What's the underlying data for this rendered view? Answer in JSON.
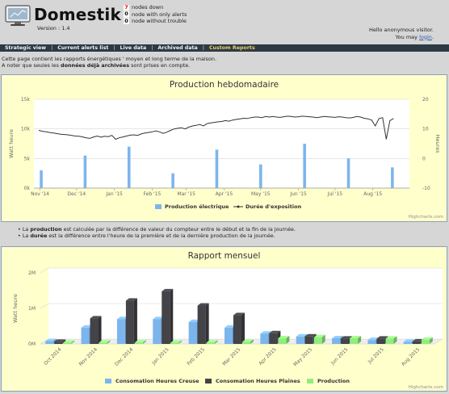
{
  "header": {
    "title": "Domestik",
    "version": "Version : 1.4",
    "node_status": [
      {
        "count": "7",
        "label": "nodes down",
        "color": "#cc0000"
      },
      {
        "count": "0",
        "label": "node with only alerts",
        "color": "#000000"
      },
      {
        "count": "0",
        "label": "node without trouble",
        "color": "#000000"
      }
    ],
    "greeting": "Hello anonymous visitor.",
    "login_prefix": "You may",
    "login_link": "login",
    "login_suffix": "."
  },
  "nav": {
    "items": [
      "Strategic view",
      "Current alerts list",
      "Live data",
      "Archived data",
      "Custom Reports"
    ],
    "active_index": 4,
    "active_color": "#f1d066"
  },
  "intro": {
    "line1": "Cette page contient les rapports énergétiques ' moyen et long terme de la maison.",
    "line2_prefix": "A noter que seules les",
    "line2_bold": "données déjà archivées",
    "line2_suffix": "sont prises en compte."
  },
  "notes": {
    "n1_prefix": "La",
    "n1_bold": "production",
    "n1_suffix": "est calculée par la différence de valeur du compteur entre le début et la fin de la journée.",
    "n2_prefix": "La",
    "n2_bold": "durée",
    "n2_suffix": "est la différence entre l'heure de la première et de la dernière production de la journée."
  },
  "credits": "Highcharts.com",
  "chart_data": [
    {
      "type": "bar",
      "title": "Production hebdomadaire",
      "ylabel": "Watt heure",
      "ylabel_right": "Heures",
      "ylim": [
        0,
        15000
      ],
      "ylim_right": [
        -10,
        20
      ],
      "y_ticks": [
        "0k",
        "5k",
        "10k",
        "15k"
      ],
      "y_ticks_right": [
        "-10",
        "0",
        "10",
        "20"
      ],
      "x_ticks": [
        "Nov '14",
        "Dec '14",
        "Jan '15",
        "Feb '15",
        "Mar '15",
        "Apr '15",
        "May '15",
        "Jun '15",
        "Jul '15",
        "Aug '15"
      ],
      "x_range": [
        "2014-10-27",
        "2015-08-31"
      ],
      "grid": true,
      "legend_position": "bottom",
      "series": [
        {
          "name": "Production électrique",
          "kind": "bar",
          "color": "#7cb5ec",
          "axis": "left",
          "sample_days": 36,
          "values": [
            3000,
            5500,
            7000,
            2500,
            6500,
            4000,
            7500,
            5000,
            3500,
            6000,
            2000,
            4500,
            2500,
            3500,
            1500,
            2500,
            3000,
            5500,
            4500,
            6500,
            3500,
            7000,
            5500,
            8000,
            9500,
            7500,
            10000,
            9000,
            11000,
            10500,
            12000,
            9500,
            11000,
            12500,
            10000,
            6000
          ]
        },
        {
          "name": "Durée d'exposition",
          "kind": "line",
          "color": "#333333",
          "axis": "right",
          "sample_days": 12,
          "values": [
            9.5,
            9.2,
            9.0,
            8.8,
            8.6,
            8.4,
            8.2,
            8.1,
            8.0,
            7.8,
            7.6,
            7.5,
            7.3,
            7.0,
            6.8,
            7.3,
            7.6,
            7.2,
            7.5,
            7.4,
            7.8,
            6.5,
            7.0,
            7.3,
            7.6,
            7.9,
            8.0,
            7.8,
            8.3,
            8.6,
            8.8,
            9.0,
            9.3,
            9.0,
            8.5,
            8.9,
            9.5,
            10.0,
            10.2,
            10.4,
            10.0,
            10.6,
            11.0,
            11.2,
            11.5,
            11.0,
            11.8,
            12.0,
            12.2,
            12.4,
            12.5,
            12.8,
            12.6,
            13.0,
            13.2,
            13.4,
            13.6,
            13.5,
            13.8,
            14.0,
            14.0,
            13.8,
            14.2,
            14.0,
            14.2,
            14.0,
            13.9,
            14.1,
            14.3,
            14.2,
            14.0,
            14.1,
            14.3,
            14.2,
            14.1,
            14.0,
            13.8,
            14.0,
            14.2,
            14.1,
            14.0,
            13.9,
            14.1,
            14.0,
            13.8,
            13.7,
            13.9,
            14.2,
            14.0,
            13.6,
            13.4,
            13.0,
            11.0,
            13.5,
            13.8,
            6.5,
            12.8,
            13.5
          ]
        }
      ]
    },
    {
      "type": "bar",
      "title": "Rapport mensuel",
      "ylabel": "Watt heure",
      "ylim": [
        0,
        2000000
      ],
      "y_ticks": [
        "0M",
        "1M",
        "2M"
      ],
      "categories": [
        "Oct 2014",
        "Nov 2014",
        "Dec 2014",
        "Jan 2015",
        "Feb 2015",
        "Mar 2015",
        "Apr 2015",
        "May 2015",
        "Jun 2015",
        "Jul 2015",
        "Aug 2015"
      ],
      "grid": true,
      "three_d": true,
      "legend_position": "bottom",
      "series": [
        {
          "name": "Consomation Heures Creuse",
          "color": "#7cb5ec",
          "values": [
            80000,
            460000,
            700000,
            700000,
            620000,
            460000,
            290000,
            210000,
            160000,
            110000,
            60000
          ]
        },
        {
          "name": "Consomation Heures Plaines",
          "color": "#434348",
          "values": [
            60000,
            720000,
            1220000,
            1480000,
            1080000,
            810000,
            300000,
            210000,
            150000,
            150000,
            70000
          ]
        },
        {
          "name": "Production",
          "color": "#90ed7d",
          "values": [
            20000,
            40000,
            40000,
            20000,
            40000,
            60000,
            160000,
            190000,
            160000,
            150000,
            120000
          ]
        }
      ]
    }
  ]
}
